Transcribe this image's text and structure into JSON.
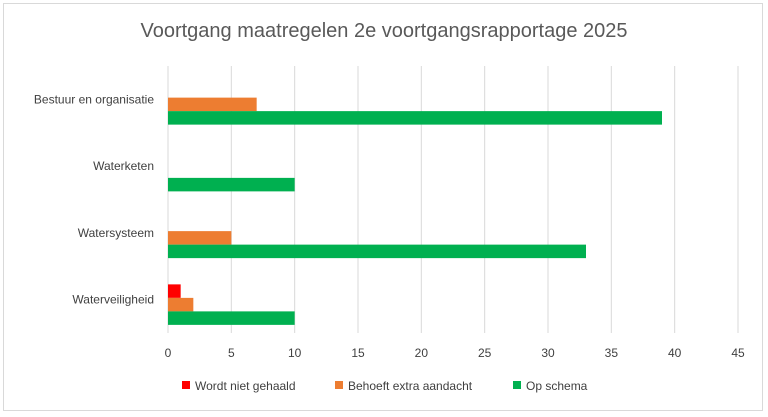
{
  "chart_data": {
    "type": "bar",
    "orientation": "horizontal",
    "title": "Voortgang maatregelen 2e voortgangsrapportage 2025",
    "xlabel": "",
    "ylabel": "",
    "categories": [
      "Bestuur en organisatie",
      "Waterketen",
      "Watersysteem",
      "Waterveiligheid"
    ],
    "series": [
      {
        "name": "Wordt niet gehaald",
        "color": "#ff0000",
        "values": [
          0,
          0,
          0,
          1
        ]
      },
      {
        "name": "Behoeft extra aandacht",
        "color": "#ed7d31",
        "values": [
          7,
          0,
          5,
          2
        ]
      },
      {
        "name": "Op schema",
        "color": "#00b050",
        "values": [
          39,
          10,
          33,
          10
        ]
      }
    ],
    "xlim": [
      0,
      45
    ],
    "xticks": [
      "0",
      "5",
      "10",
      "15",
      "20",
      "25",
      "30",
      "35",
      "40",
      "45"
    ],
    "grid": "vertical",
    "legend": "bottom"
  }
}
